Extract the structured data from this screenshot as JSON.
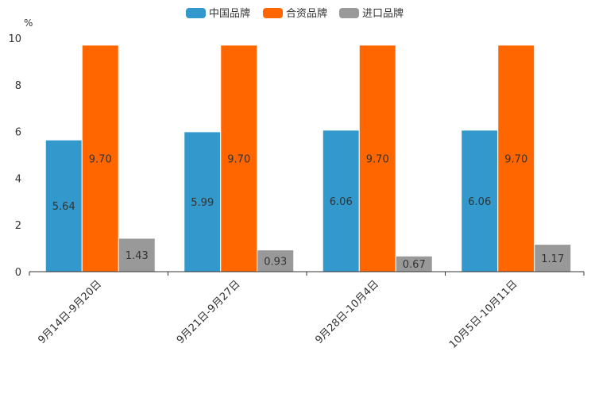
{
  "chart_data": {
    "type": "bar",
    "title": "",
    "unit_label": "%",
    "xlabel": "",
    "ylabel": "",
    "ylim": [
      0,
      10
    ],
    "yticks": [
      0,
      2,
      4,
      6,
      8,
      10
    ],
    "legend_position": "top-center",
    "categories": [
      "9月14日-9月20日",
      "9月21日-9月27日",
      "9月28日-10月4日",
      "10月5日-10月11日"
    ],
    "series": [
      {
        "name": "中国品牌",
        "color": "#3399cc",
        "values": [
          5.64,
          5.99,
          6.06,
          6.06
        ],
        "labels": [
          "5.64",
          "5.99",
          "6.06",
          "6.06"
        ]
      },
      {
        "name": "合资品牌",
        "color": "#ff6600",
        "values": [
          9.7,
          9.7,
          9.7,
          9.7
        ],
        "labels": [
          "9.70",
          "9.70",
          "9.70",
          "9.70"
        ]
      },
      {
        "name": "进口品牌",
        "color": "#999999",
        "values": [
          1.43,
          0.93,
          0.67,
          1.17
        ],
        "labels": [
          "1.43",
          "0.93",
          "0.67",
          "1.17"
        ]
      }
    ]
  }
}
